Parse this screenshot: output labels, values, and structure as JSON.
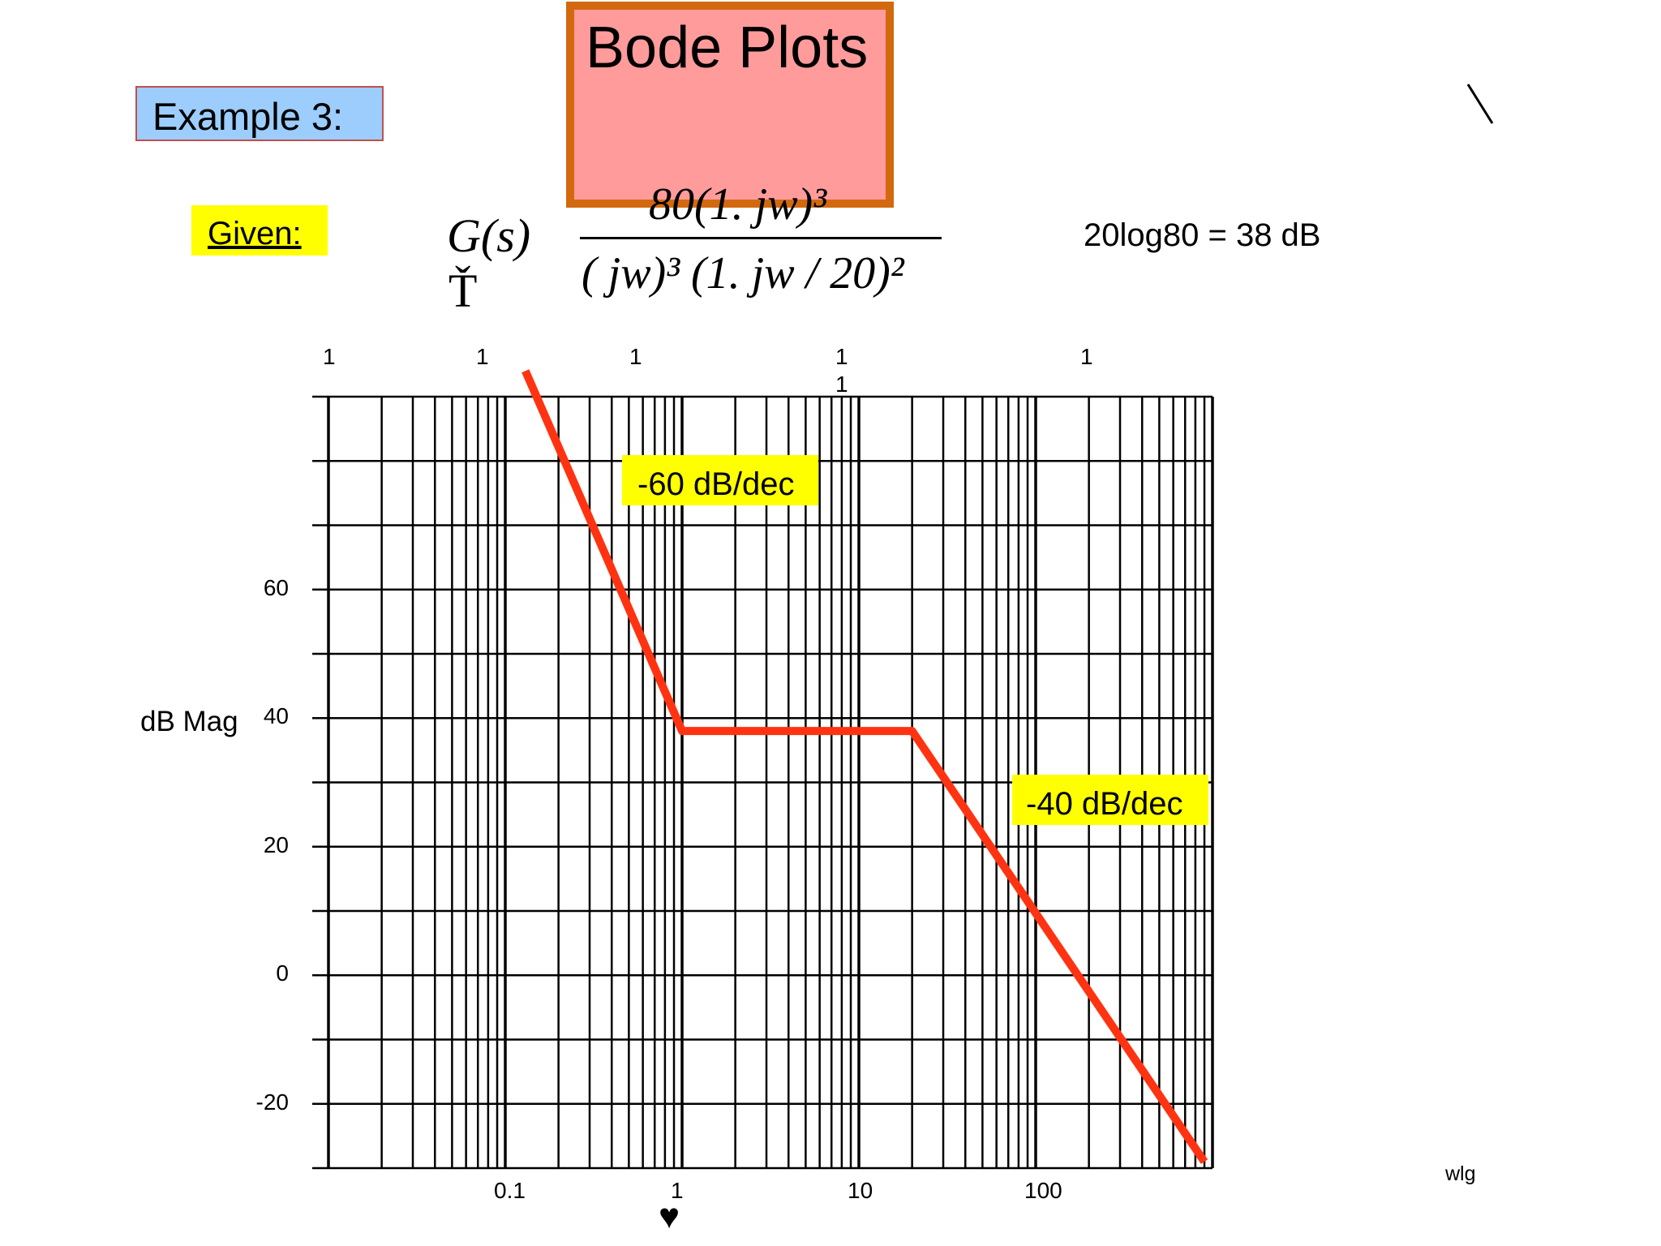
{
  "title": "Bode Plots",
  "example_label": "Example 3:",
  "given_label": "Given:",
  "formula": {
    "lhs": "G(s)",
    "lhs_eq": "Ť",
    "numerator": "80(1.  jw)³",
    "denominator": "( jw)³ (1.  jw / 20)²"
  },
  "gain_note": "20log80 = 38 dB",
  "top_marks": [
    "1",
    "1",
    "1",
    "1",
    "1",
    "1"
  ],
  "wlg_label": "wlg",
  "heart_glyph": "♥",
  "chart_data": {
    "type": "line",
    "xscale": "log",
    "xlim": [
      0.01,
      1000
    ],
    "ylim": [
      -30,
      90
    ],
    "grid": true,
    "xlabel": "",
    "ylabel": "dB Mag",
    "x_tick_labels": [
      {
        "x": 0.1,
        "label": "0.1"
      },
      {
        "x": 1,
        "label": "1"
      },
      {
        "x": 10,
        "label": "10"
      },
      {
        "x": 100,
        "label": "100"
      }
    ],
    "y_tick_labels": [
      {
        "y": 60,
        "label": "60"
      },
      {
        "y": 40,
        "label": "40"
      },
      {
        "y": 20,
        "label": "20"
      },
      {
        "y": 0,
        "label": "0"
      },
      {
        "y": -20,
        "label": "-20"
      }
    ],
    "series": [
      {
        "color": "#ff3311",
        "x": [
          0.13,
          1,
          20,
          900
        ],
        "y": [
          94,
          38,
          38,
          -29
        ]
      }
    ],
    "annotations": [
      {
        "text": "-60 dB/dec"
      },
      {
        "text": "-40 dB/dec"
      }
    ]
  }
}
